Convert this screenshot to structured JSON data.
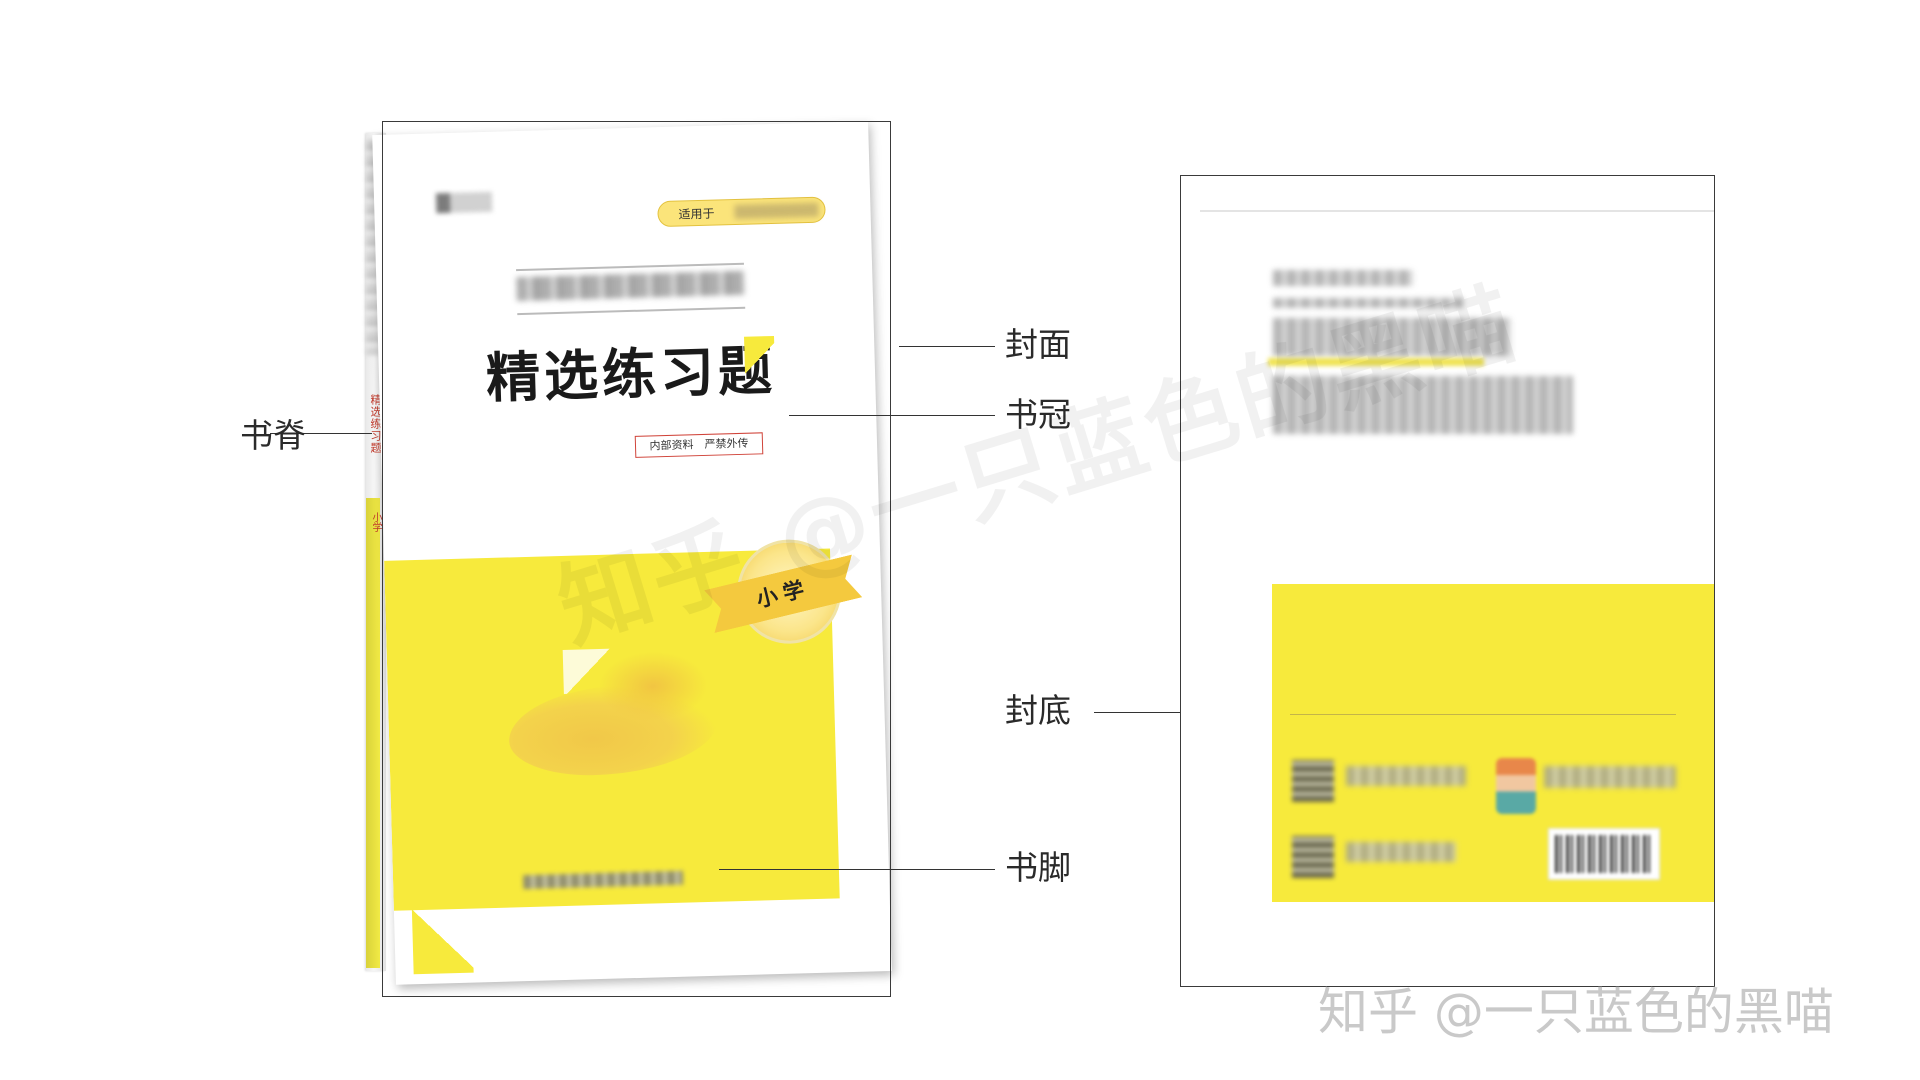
{
  "labels": {
    "spine": "书脊",
    "cover": "封面",
    "crown": "书冠",
    "back_cover": "封底",
    "footer": "书脚"
  },
  "front_cover": {
    "pill_text": "适用于",
    "title": "精选练习题",
    "badge": "内部资料　严禁外传",
    "level": "小学"
  },
  "spine_text": {
    "title": "精选练习题",
    "level": "小学"
  },
  "watermark": {
    "diagonal": "知乎 @一只蓝色的黑喵",
    "corner": "知乎 @一只蓝色的黑喵"
  },
  "colors": {
    "accent_yellow": "#f7ea3c",
    "badge_red": "#d0443a",
    "outline": "#3a3a3a"
  }
}
